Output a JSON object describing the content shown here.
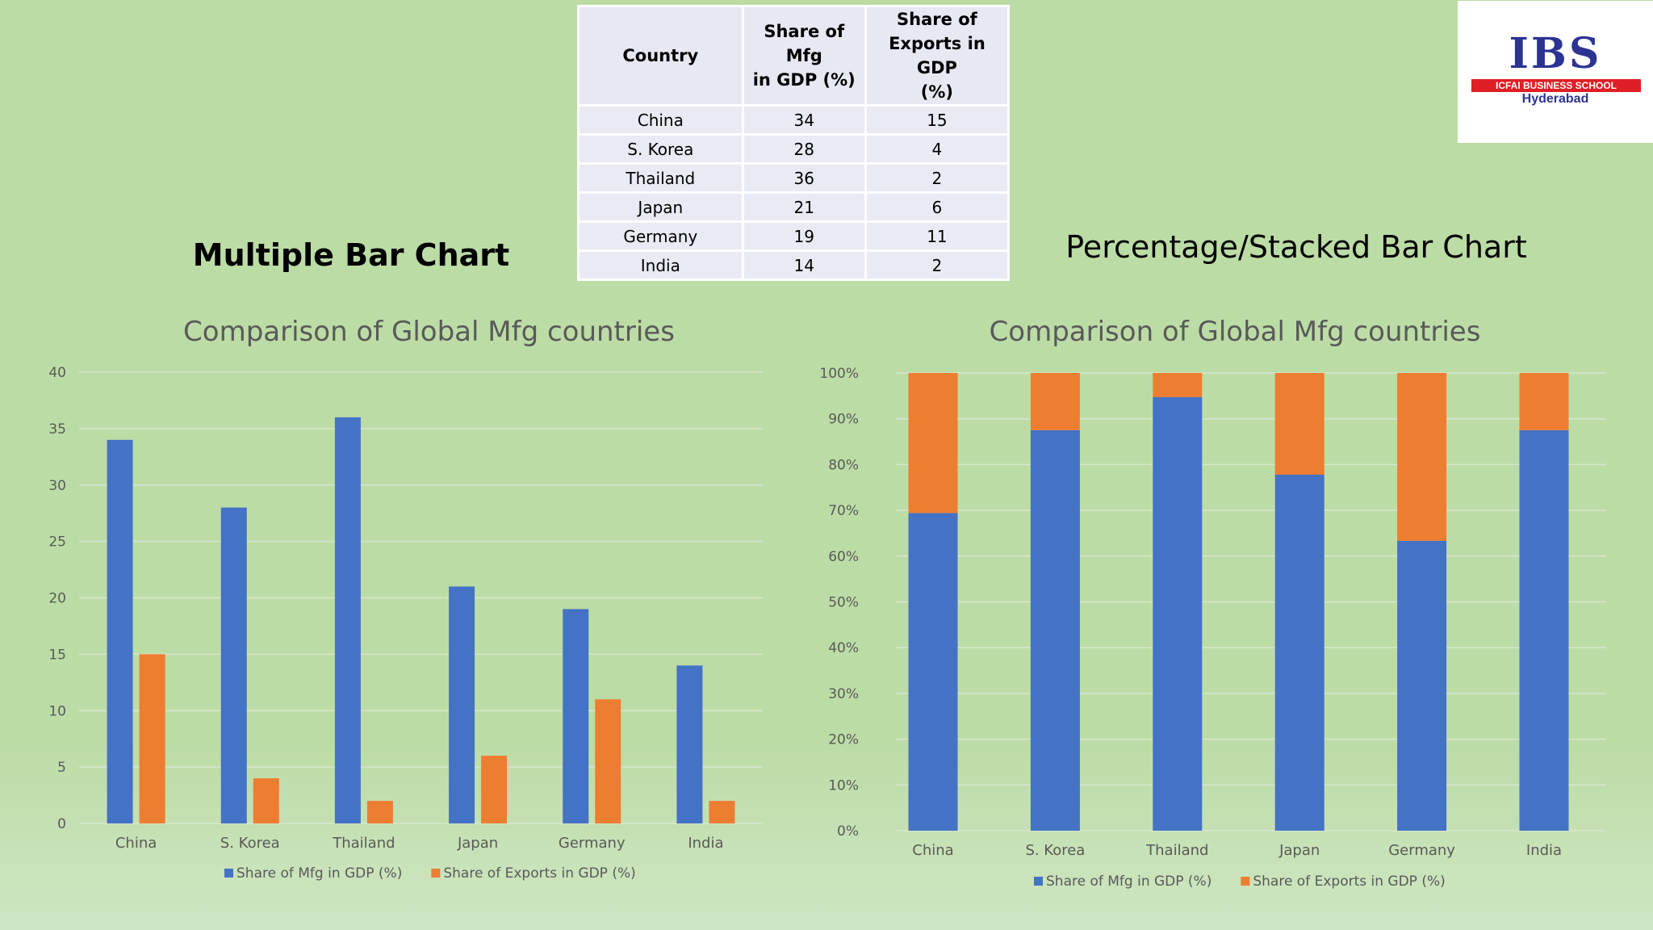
{
  "table": {
    "headers": [
      "Country",
      "Share of Mfg in GDP (%)",
      "Share of Exports in GDP (%)"
    ],
    "header_lines": [
      [
        "Country"
      ],
      [
        "Share of Mfg",
        "in GDP (%)"
      ],
      [
        "Share of",
        "Exports in GDP",
        "(%)"
      ]
    ],
    "rows": [
      [
        "China",
        "34",
        "15"
      ],
      [
        "S. Korea",
        "28",
        "4"
      ],
      [
        "Thailand",
        "36",
        "2"
      ],
      [
        "Japan",
        "21",
        "6"
      ],
      [
        "Germany",
        "19",
        "11"
      ],
      [
        "India",
        "14",
        "2"
      ]
    ]
  },
  "logo": {
    "word": "IBS",
    "band": "ICFAI BUSINESS SCHOOL",
    "city": "Hyderabad"
  },
  "headings": {
    "left": "Multiple Bar Chart",
    "right": "Percentage/Stacked Bar Chart"
  },
  "colors": {
    "series_mfg": "#4472c4",
    "series_exports": "#ed7d31",
    "gridline": "#d7e7cd",
    "axis_text": "#595959",
    "title_text": "#595959"
  },
  "chart_data": [
    {
      "type": "bar",
      "title": "Comparison of Global Mfg countries",
      "categories": [
        "China",
        "S. Korea",
        "Thailand",
        "Japan",
        "Germany",
        "India"
      ],
      "series": [
        {
          "name": "Share of Mfg in GDP (%)",
          "values": [
            34,
            28,
            36,
            21,
            19,
            14
          ]
        },
        {
          "name": "Share of Exports in GDP (%)",
          "values": [
            15,
            4,
            2,
            6,
            11,
            2
          ]
        }
      ],
      "ylim": [
        0,
        40
      ],
      "yticks": [
        "0",
        "5",
        "10",
        "15",
        "20",
        "25",
        "30",
        "35",
        "40"
      ],
      "grid": true,
      "legend": "bottom"
    },
    {
      "type": "bar",
      "stacked": "percent",
      "title": "Comparison of Global Mfg countries",
      "categories": [
        "China",
        "S. Korea",
        "Thailand",
        "Japan",
        "Germany",
        "India"
      ],
      "series": [
        {
          "name": "Share of Mfg in GDP (%)",
          "values": [
            34,
            28,
            36,
            21,
            19,
            14
          ]
        },
        {
          "name": "Share of Exports in GDP (%)",
          "values": [
            15,
            4,
            2,
            6,
            11,
            2
          ]
        }
      ],
      "ylim": [
        0,
        100
      ],
      "yticks": [
        "0%",
        "10%",
        "20%",
        "30%",
        "40%",
        "50%",
        "60%",
        "70%",
        "80%",
        "90%",
        "100%"
      ],
      "grid": true,
      "legend": "bottom"
    }
  ]
}
